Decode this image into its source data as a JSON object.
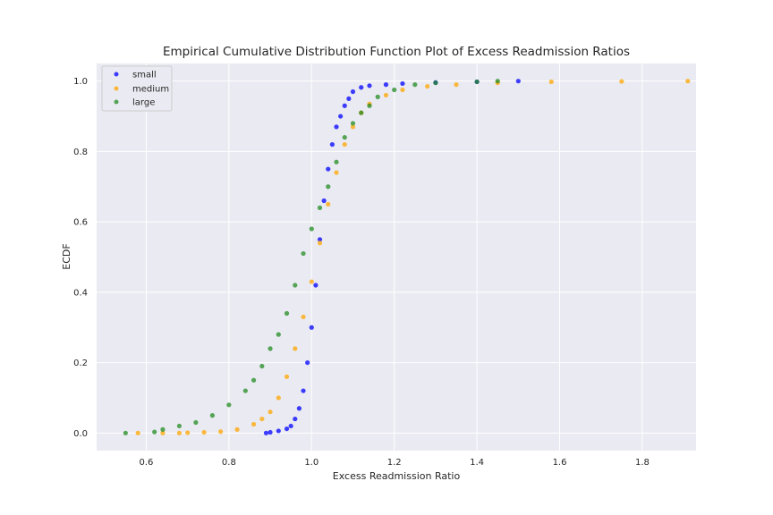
{
  "chart_data": {
    "type": "scatter",
    "title": "Empirical Cumulative Distribution Function Plot of Excess Readmission Ratios",
    "xlabel": "Excess Readmission Ratio",
    "ylabel": "ECDF",
    "xlim": [
      0.48,
      1.93
    ],
    "ylim": [
      -0.05,
      1.05
    ],
    "xticks": [
      "0.6",
      "0.8",
      "1.0",
      "1.2",
      "1.4",
      "1.6",
      "1.8"
    ],
    "yticks": [
      "0.0",
      "0.2",
      "0.4",
      "0.6",
      "0.8",
      "1.0"
    ],
    "grid": true,
    "legend_position": "top-left",
    "series": [
      {
        "name": "small",
        "color": "#0000ff",
        "points": [
          [
            0.89,
            0.0
          ],
          [
            0.9,
            0.002
          ],
          [
            0.92,
            0.006
          ],
          [
            0.94,
            0.012
          ],
          [
            0.95,
            0.02
          ],
          [
            0.96,
            0.04
          ],
          [
            0.97,
            0.07
          ],
          [
            0.98,
            0.12
          ],
          [
            0.99,
            0.2
          ],
          [
            1.0,
            0.3
          ],
          [
            1.01,
            0.42
          ],
          [
            1.02,
            0.55
          ],
          [
            1.03,
            0.66
          ],
          [
            1.04,
            0.75
          ],
          [
            1.05,
            0.82
          ],
          [
            1.06,
            0.87
          ],
          [
            1.07,
            0.9
          ],
          [
            1.08,
            0.93
          ],
          [
            1.09,
            0.95
          ],
          [
            1.1,
            0.97
          ],
          [
            1.12,
            0.982
          ],
          [
            1.14,
            0.987
          ],
          [
            1.18,
            0.99
          ],
          [
            1.22,
            0.993
          ],
          [
            1.3,
            0.996
          ],
          [
            1.4,
            0.998
          ],
          [
            1.5,
            1.0
          ]
        ]
      },
      {
        "name": "medium",
        "color": "#ffa500",
        "points": [
          [
            0.58,
            0.0
          ],
          [
            0.64,
            0.0
          ],
          [
            0.68,
            0.0
          ],
          [
            0.7,
            0.001
          ],
          [
            0.74,
            0.002
          ],
          [
            0.78,
            0.004
          ],
          [
            0.82,
            0.01
          ],
          [
            0.86,
            0.025
          ],
          [
            0.88,
            0.04
          ],
          [
            0.9,
            0.06
          ],
          [
            0.92,
            0.1
          ],
          [
            0.94,
            0.16
          ],
          [
            0.96,
            0.24
          ],
          [
            0.98,
            0.33
          ],
          [
            1.0,
            0.43
          ],
          [
            1.02,
            0.54
          ],
          [
            1.04,
            0.65
          ],
          [
            1.06,
            0.74
          ],
          [
            1.08,
            0.82
          ],
          [
            1.1,
            0.87
          ],
          [
            1.12,
            0.91
          ],
          [
            1.14,
            0.935
          ],
          [
            1.18,
            0.96
          ],
          [
            1.22,
            0.975
          ],
          [
            1.28,
            0.985
          ],
          [
            1.35,
            0.99
          ],
          [
            1.45,
            0.995
          ],
          [
            1.58,
            0.998
          ],
          [
            1.75,
            0.999
          ],
          [
            1.91,
            1.0
          ]
        ]
      },
      {
        "name": "large",
        "color": "#228b22",
        "points": [
          [
            0.55,
            0.0
          ],
          [
            0.62,
            0.003
          ],
          [
            0.64,
            0.01
          ],
          [
            0.68,
            0.02
          ],
          [
            0.72,
            0.03
          ],
          [
            0.76,
            0.05
          ],
          [
            0.8,
            0.08
          ],
          [
            0.84,
            0.12
          ],
          [
            0.86,
            0.15
          ],
          [
            0.88,
            0.19
          ],
          [
            0.9,
            0.24
          ],
          [
            0.92,
            0.28
          ],
          [
            0.94,
            0.34
          ],
          [
            0.96,
            0.42
          ],
          [
            0.98,
            0.51
          ],
          [
            1.0,
            0.58
          ],
          [
            1.02,
            0.64
          ],
          [
            1.04,
            0.7
          ],
          [
            1.06,
            0.77
          ],
          [
            1.08,
            0.84
          ],
          [
            1.1,
            0.88
          ],
          [
            1.12,
            0.91
          ],
          [
            1.14,
            0.93
          ],
          [
            1.16,
            0.955
          ],
          [
            1.2,
            0.975
          ],
          [
            1.25,
            0.99
          ],
          [
            1.3,
            0.995
          ],
          [
            1.4,
            0.998
          ],
          [
            1.45,
            1.0
          ]
        ]
      }
    ]
  }
}
